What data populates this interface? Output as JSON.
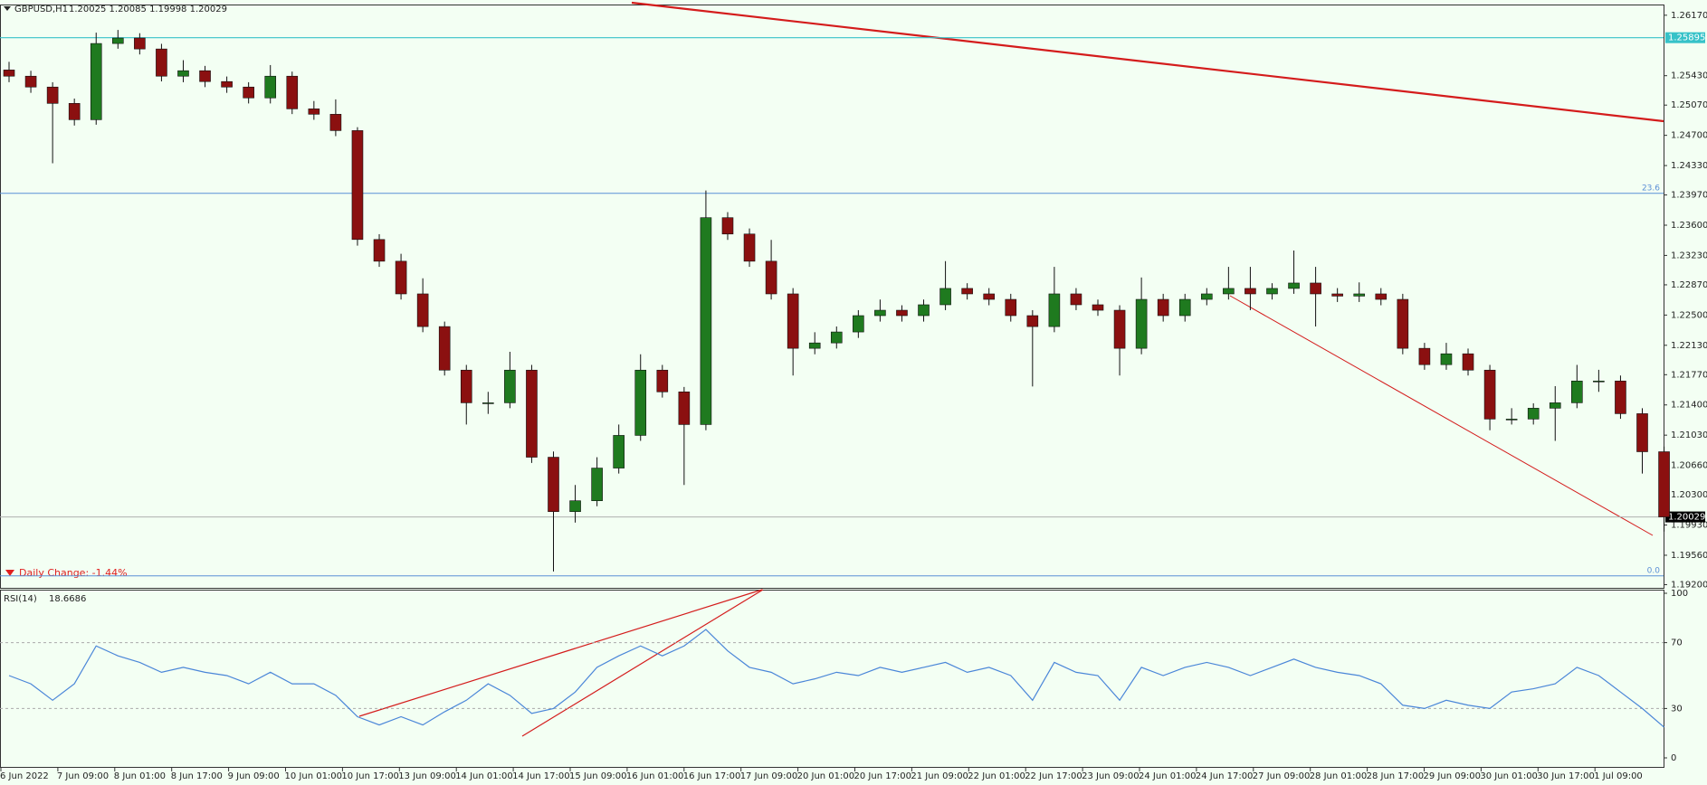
{
  "header": {
    "symbol": "GBPUSD,H1",
    "quote": "1.20025 1.20085 1.19998 1.20029",
    "daily_change": "Daily Change: -1.44%"
  },
  "chart_data": [
    {
      "type": "candlestick",
      "up_color": "#1f7a1f",
      "down_color": "#8b1010",
      "open": [
        1.255,
        1.25424,
        1.25291,
        1.25091,
        1.24891,
        1.25824,
        1.25891,
        1.25757,
        1.25424,
        1.25491,
        1.25358,
        1.25291,
        1.25158,
        1.25424,
        1.25024,
        1.24958,
        1.24758,
        1.23425,
        1.23159,
        1.22759,
        1.22359,
        1.21826,
        1.21426,
        1.21426,
        1.21826,
        1.2076,
        1.20094,
        1.20227,
        1.20627,
        1.21027,
        1.21826,
        1.2156,
        1.2116,
        1.23692,
        1.23492,
        1.23159,
        1.22759,
        1.22093,
        1.22159,
        1.22293,
        1.22493,
        1.22559,
        1.22493,
        1.22626,
        1.22826,
        1.22759,
        1.22692,
        1.22493,
        1.22359,
        1.22759,
        1.22626,
        1.22559,
        1.22093,
        1.22692,
        1.22493,
        1.22692,
        1.22759,
        1.22826,
        1.22759,
        1.22826,
        1.22892,
        1.22759,
        1.22732,
        1.22759,
        1.22692,
        1.22093,
        1.21893,
        1.22026,
        1.21826,
        1.21227,
        1.21227,
        1.2136,
        1.21426,
        1.21693,
        1.21693,
        1.21293,
        1.20827
      ],
      "high": [
        1.256,
        1.2549,
        1.2535,
        1.2515,
        1.25957,
        1.2599,
        1.2595,
        1.2582,
        1.2562,
        1.2555,
        1.2542,
        1.2535,
        1.2556,
        1.2548,
        1.2512,
        1.2514,
        1.248,
        1.2349,
        1.2325,
        1.2295,
        1.2242,
        1.2189,
        1.2156,
        1.2205,
        1.2189,
        1.2083,
        1.2042,
        1.2076,
        1.2116,
        1.2202,
        1.2189,
        1.2162,
        1.24025,
        1.2376,
        1.2356,
        1.2342,
        1.2283,
        1.2229,
        1.2236,
        1.2256,
        1.2269,
        1.2262,
        1.2269,
        1.2316,
        1.2289,
        1.2283,
        1.2276,
        1.2256,
        1.2309,
        1.2283,
        1.2269,
        1.2262,
        1.2296,
        1.2276,
        1.2276,
        1.2283,
        1.2309,
        1.2309,
        1.2289,
        1.2329,
        1.2309,
        1.2283,
        1.229,
        1.2283,
        1.2276,
        1.2216,
        1.2216,
        1.2209,
        1.2189,
        1.2136,
        1.2142,
        1.2163,
        1.2189,
        1.2183,
        1.2176,
        1.2136,
        1.2089
      ],
      "low": [
        1.2535,
        1.2522,
        1.24358,
        1.2482,
        1.2483,
        1.2576,
        1.2569,
        1.2536,
        1.2535,
        1.2529,
        1.2522,
        1.2509,
        1.2509,
        1.2496,
        1.2489,
        1.2469,
        1.2335,
        1.2309,
        1.2269,
        1.2229,
        1.2176,
        1.2116,
        1.2129,
        1.2136,
        1.2069,
        1.19361,
        1.1996,
        1.2016,
        1.2056,
        1.2096,
        1.2149,
        1.2042,
        1.2109,
        1.2342,
        1.2309,
        1.2269,
        1.2176,
        1.2202,
        1.2209,
        1.2222,
        1.2242,
        1.2242,
        1.2242,
        1.2256,
        1.2269,
        1.2262,
        1.2242,
        1.21626,
        1.2229,
        1.2256,
        1.2249,
        1.2176,
        1.2202,
        1.2242,
        1.2242,
        1.2262,
        1.2269,
        1.2256,
        1.2269,
        1.2276,
        1.2236,
        1.2266,
        1.2266,
        1.2262,
        1.2202,
        1.2183,
        1.2183,
        1.2176,
        1.2109,
        1.2116,
        1.2116,
        1.2096,
        1.2136,
        1.2156,
        1.2123,
        1.2056,
        1.1985
      ],
      "close": [
        1.25424,
        1.25291,
        1.25091,
        1.24891,
        1.25824,
        1.25891,
        1.25757,
        1.25424,
        1.25491,
        1.25358,
        1.25291,
        1.25158,
        1.25424,
        1.25024,
        1.24958,
        1.24758,
        1.23425,
        1.23159,
        1.22759,
        1.22359,
        1.21826,
        1.21426,
        1.21426,
        1.21826,
        1.2076,
        1.20094,
        1.20227,
        1.20627,
        1.21027,
        1.21826,
        1.2156,
        1.2116,
        1.23692,
        1.23492,
        1.23159,
        1.22759,
        1.22093,
        1.22159,
        1.22293,
        1.22493,
        1.22559,
        1.22493,
        1.22626,
        1.22826,
        1.22759,
        1.22692,
        1.22493,
        1.22359,
        1.22759,
        1.22626,
        1.22559,
        1.22093,
        1.22692,
        1.22493,
        1.22692,
        1.22759,
        1.22826,
        1.22759,
        1.22826,
        1.22892,
        1.22759,
        1.22732,
        1.22759,
        1.22692,
        1.22093,
        1.21893,
        1.22026,
        1.21826,
        1.21227,
        1.21227,
        1.2136,
        1.21426,
        1.21693,
        1.21693,
        1.21293,
        1.20827,
        1.20029
      ],
      "ylim": [
        1.19161,
        1.2629
      ],
      "yticks": [
        {
          "value": 1.2617,
          "label": "1.26170"
        },
        {
          "value": 1.2543,
          "label": "1.25430"
        },
        {
          "value": 1.2507,
          "label": "1.25070"
        },
        {
          "value": 1.247,
          "label": "1.24700"
        },
        {
          "value": 1.2433,
          "label": "1.24330"
        },
        {
          "value": 1.2397,
          "label": "1.23970"
        },
        {
          "value": 1.236,
          "label": "1.23600"
        },
        {
          "value": 1.2323,
          "label": "1.23230"
        },
        {
          "value": 1.2287,
          "label": "1.22870"
        },
        {
          "value": 1.225,
          "label": "1.22500"
        },
        {
          "value": 1.2213,
          "label": "1.22130"
        },
        {
          "value": 1.2177,
          "label": "1.21770"
        },
        {
          "value": 1.214,
          "label": "1.21400"
        },
        {
          "value": 1.2103,
          "label": "1.21030"
        },
        {
          "value": 1.2066,
          "label": "1.20660"
        },
        {
          "value": 1.203,
          "label": "1.20300"
        },
        {
          "value": 1.1993,
          "label": "1.19930"
        },
        {
          "value": 1.1956,
          "label": "1.19560"
        },
        {
          "value": 1.192,
          "label": "1.19200"
        }
      ],
      "levels": [
        {
          "value": 1.25895,
          "color": "#36c2c8"
        }
      ],
      "fib_levels": [
        {
          "value": 1.2399,
          "label": "23.6"
        },
        {
          "value": 1.19307,
          "label": "0.0"
        }
      ]
    },
    {
      "type": "line",
      "title": "RSI(14)",
      "color": "#4a86d8",
      "values": [
        50,
        45,
        35,
        45,
        68,
        62,
        58,
        52,
        55,
        52,
        50,
        45,
        52,
        45,
        45,
        38,
        25,
        20,
        25,
        20,
        28,
        35,
        45,
        38,
        27,
        30,
        40,
        55,
        62,
        68,
        62,
        68,
        78,
        65,
        55,
        52,
        45,
        48,
        52,
        50,
        55,
        52,
        55,
        58,
        52,
        55,
        50,
        35,
        58,
        52,
        50,
        35,
        55,
        50,
        55,
        58,
        55,
        50,
        55,
        60,
        55,
        52,
        50,
        45,
        32,
        30,
        35,
        32,
        30,
        40,
        42,
        45,
        55,
        50,
        40,
        30,
        18.6686
      ],
      "ylim": [
        0,
        100
      ],
      "yticks": [
        100,
        70,
        30,
        0
      ],
      "x_labels": [
        "6 Jun 2022",
        "7 Jun 09:00",
        "8 Jun 01:00",
        "8 Jun 17:00",
        "9 Jun 09:00",
        "10 Jun 01:00",
        "10 Jun 17:00",
        "13 Jun 09:00",
        "14 Jun 01:00",
        "14 Jun 17:00",
        "15 Jun 09:00",
        "16 Jun 01:00",
        "16 Jun 17:00",
        "17 Jun 09:00",
        "20 Jun 01:00",
        "20 Jun 17:00",
        "21 Jun 09:00",
        "22 Jun 01:00",
        "22 Jun 17:00",
        "23 Jun 09:00",
        "24 Jun 01:00",
        "24 Jun 17:00",
        "27 Jun 09:00",
        "28 Jun 01:00",
        "28 Jun 17:00",
        "29 Jun 09:00",
        "30 Jun 01:00",
        "30 Jun 17:00",
        "1 Jul 09:00"
      ]
    }
  ]
}
